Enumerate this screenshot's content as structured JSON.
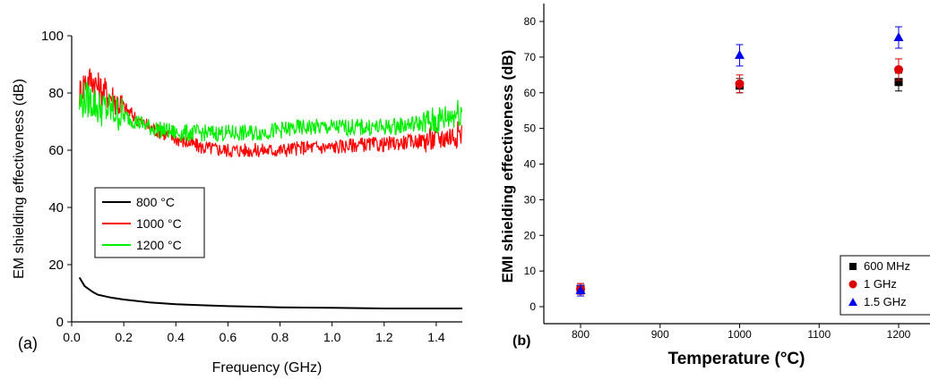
{
  "chart_data": [
    {
      "type": "line",
      "panel_label": "(a)",
      "xlabel": "Frequency (GHz)",
      "ylabel": "EM shielding effectiveness (dB)",
      "xlim": [
        0.0,
        1.5
      ],
      "ylim": [
        0,
        100
      ],
      "xticks": [
        "0.0",
        "0.2",
        "0.4",
        "0.6",
        "0.8",
        "1.0",
        "1.2",
        "1.4"
      ],
      "yticks": [
        "0",
        "20",
        "40",
        "60",
        "80",
        "100"
      ],
      "grid": false,
      "legend_position": "center-left",
      "series": [
        {
          "name": "800 °C",
          "color": "#000000",
          "x": [
            0.03,
            0.05,
            0.08,
            0.1,
            0.15,
            0.2,
            0.3,
            0.4,
            0.5,
            0.6,
            0.7,
            0.8,
            0.9,
            1.0,
            1.1,
            1.2,
            1.3,
            1.4,
            1.5
          ],
          "y": [
            15.5,
            12.5,
            10.5,
            9.5,
            8.5,
            7.8,
            6.8,
            6.2,
            5.8,
            5.5,
            5.3,
            5.1,
            5.0,
            4.9,
            4.8,
            4.7,
            4.7,
            4.7,
            4.7
          ]
        },
        {
          "name": "1000 °C",
          "color": "#ff0000",
          "x": [
            0.03,
            0.05,
            0.08,
            0.1,
            0.15,
            0.2,
            0.25,
            0.3,
            0.35,
            0.4,
            0.5,
            0.6,
            0.7,
            0.8,
            0.9,
            1.0,
            1.1,
            1.2,
            1.3,
            1.4,
            1.45,
            1.5
          ],
          "y": [
            80,
            84,
            85,
            82,
            79,
            75,
            71,
            68,
            66,
            64,
            61,
            60,
            60,
            60,
            61,
            61,
            62,
            62,
            63,
            64,
            65,
            66
          ]
        },
        {
          "name": "1200 °C",
          "color": "#00ee00",
          "x": [
            0.03,
            0.05,
            0.08,
            0.1,
            0.15,
            0.2,
            0.25,
            0.3,
            0.35,
            0.4,
            0.5,
            0.6,
            0.7,
            0.8,
            0.9,
            1.0,
            1.1,
            1.2,
            1.3,
            1.4,
            1.45,
            1.5
          ],
          "y": [
            76,
            78,
            77,
            75,
            74,
            72,
            70,
            68,
            67,
            66,
            66,
            66,
            66,
            67,
            68,
            68,
            68,
            68,
            69,
            70,
            72,
            74
          ]
        }
      ]
    },
    {
      "type": "scatter",
      "panel_label": "(b)",
      "xlabel": "Temperature (°C)",
      "ylabel": "EMI shielding effectiveness (dB)",
      "xlim": [
        750,
        1250
      ],
      "ylim": [
        -5,
        85
      ],
      "xticks": [
        "800",
        "900",
        "1000",
        "1100",
        "1200"
      ],
      "yticks": [
        "0",
        "10",
        "20",
        "30",
        "40",
        "50",
        "60",
        "70",
        "80"
      ],
      "grid": false,
      "legend_position": "bottom-right",
      "series": [
        {
          "name": "600 MHz",
          "color": "#000000",
          "marker": "square",
          "x": [
            800,
            1000,
            1200
          ],
          "y": [
            5,
            62,
            63
          ],
          "error": [
            1.5,
            2,
            2.5
          ]
        },
        {
          "name": "1 GHz",
          "color": "#dd0000",
          "marker": "circle",
          "x": [
            800,
            1000,
            1200
          ],
          "y": [
            5,
            62.5,
            66.5
          ],
          "error": [
            1.5,
            2.5,
            3
          ]
        },
        {
          "name": "1.5 GHz",
          "color": "#0000ee",
          "marker": "triangle",
          "x": [
            800,
            1000,
            1200
          ],
          "y": [
            4.5,
            70.5,
            75.5
          ],
          "error": [
            1.5,
            3,
            3
          ]
        }
      ]
    }
  ]
}
